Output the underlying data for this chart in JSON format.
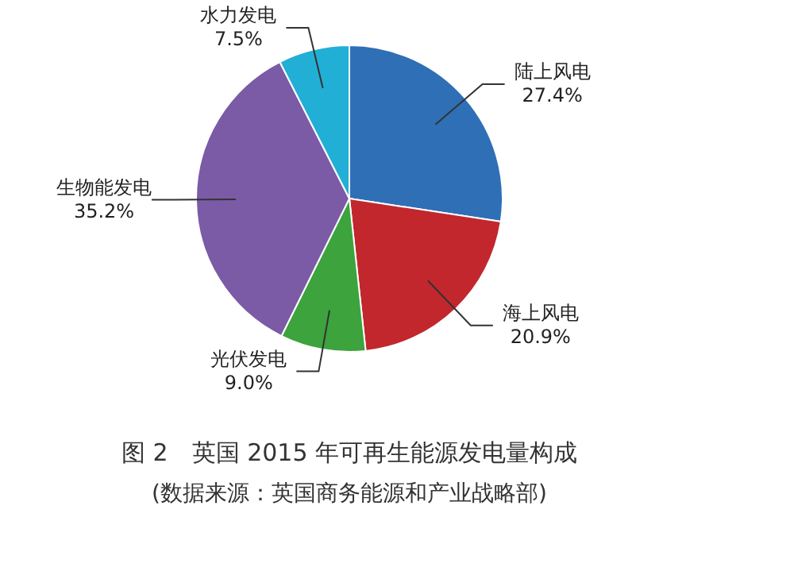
{
  "chart_data": {
    "type": "pie",
    "title": "图 2　英国 2015 年可再生能源发电量构成",
    "subtitle": "(数据来源：英国商务能源和产业战略部)",
    "categories": [
      "陆上风电",
      "海上风电",
      "光伏发电",
      "生物能发电",
      "水力发电"
    ],
    "values": [
      27.4,
      20.9,
      9.0,
      35.2,
      7.5
    ],
    "value_labels": [
      "27.4%",
      "20.9%",
      "9.0%",
      "35.2%",
      "7.5%"
    ],
    "colors": [
      "#2f6fb5",
      "#c1272d",
      "#3ca33d",
      "#7b5aa6",
      "#22afd6"
    ],
    "legend": false
  }
}
